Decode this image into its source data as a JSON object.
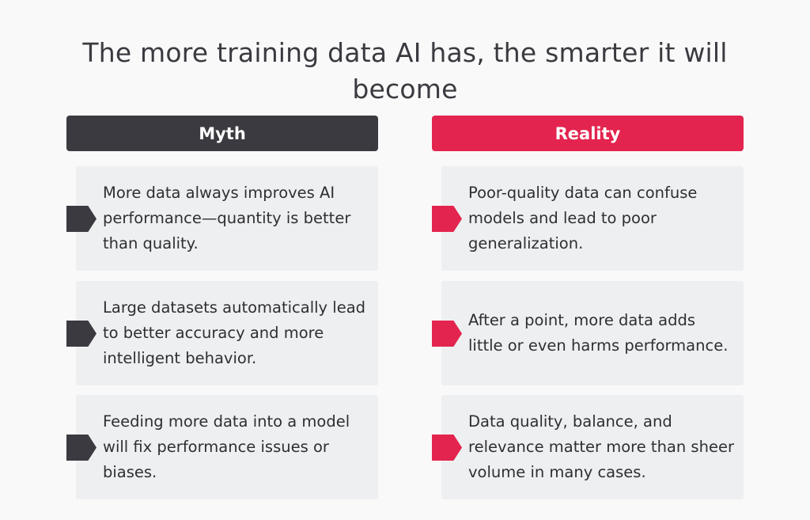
{
  "title": "The more training data AI has, the smarter it will become",
  "myth": {
    "header": "Myth",
    "items": [
      "More data always improves AI performance—quantity is better than quality.",
      "Large datasets automatically lead to better accuracy and more intelligent behavior.",
      "Feeding more data into a model will fix performance issues or biases."
    ]
  },
  "reality": {
    "header": "Reality",
    "items": [
      "Poor-quality data can confuse models and lead to poor generalization.",
      "After a point, more data adds little or even harms performance.",
      "Data quality, balance, and relevance matter more than sheer volume in many cases."
    ]
  },
  "colors": {
    "myth_accent": "#3a3a40",
    "reality_accent": "#e3244e",
    "card_background": "#eeeff1",
    "page_background": "#f9f9f9"
  }
}
